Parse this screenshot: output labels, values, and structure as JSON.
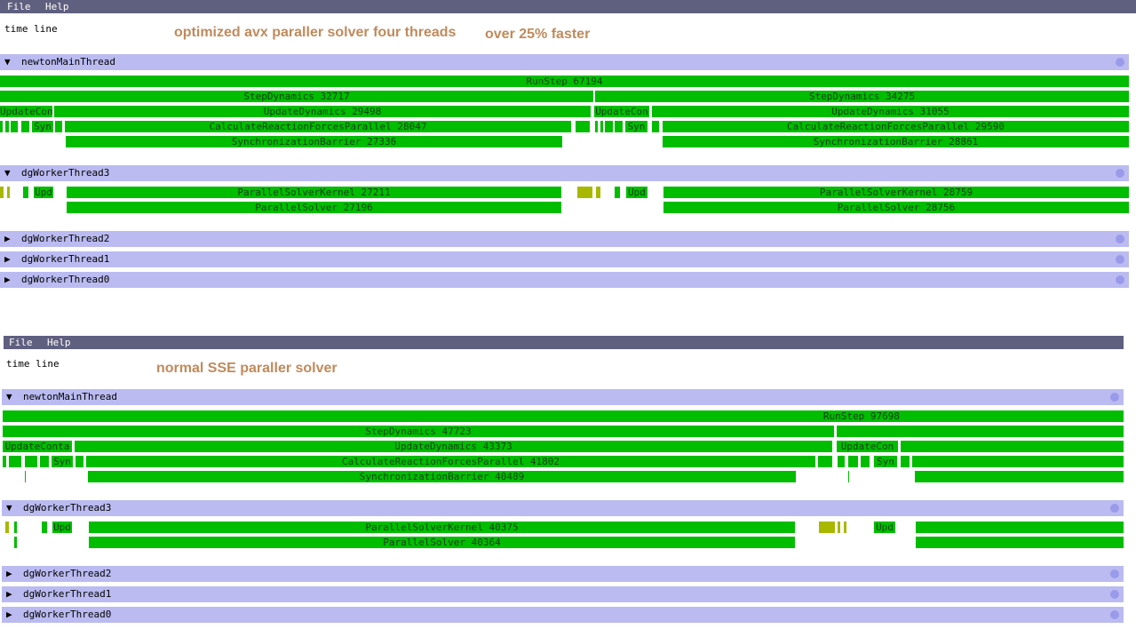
{
  "panels": [
    {
      "menu": [
        "File",
        "Help"
      ],
      "timeline_label": "time line",
      "annotations": [
        "optimized avx paraller solver four threads",
        "over 25% faster"
      ],
      "threads": [
        {
          "toggle": "▼",
          "name": "newtonMainThread",
          "rows": [
            [
              {
                "label": "RunStep 67194"
              }
            ],
            [
              {
                "label": "StepDynamics 32717"
              },
              {
                "label": "StepDynamics 34275"
              }
            ],
            [
              {
                "label": "UpdateCon"
              },
              {
                "label": "UpdateDynamics 29498"
              },
              {
                "label": "UpdateCon"
              },
              {
                "label": "UpdateDynamics 31055"
              }
            ],
            [
              {
                "label": ""
              },
              {
                "label": ""
              },
              {
                "label": ""
              },
              {
                "label": ""
              },
              {
                "label": "Syn"
              },
              {
                "label": ""
              },
              {
                "label": "CalculateReactionForcesParallel 28047"
              },
              {
                "label": ""
              },
              {
                "label": ""
              },
              {
                "label": ""
              },
              {
                "label": ""
              },
              {
                "label": ""
              },
              {
                "label": "Syn"
              },
              {
                "label": ""
              },
              {
                "label": "CalculateReactionForcesParallel 29590"
              }
            ],
            [
              {
                "label": "SynchronizationBarrier 27336"
              },
              {
                "label": "SynchronizationBarrier 28861"
              }
            ]
          ]
        },
        {
          "toggle": "▼",
          "name": "dgWorkerThread3",
          "rows": [
            [
              {
                "label": ""
              },
              {
                "label": ""
              },
              {
                "label": ""
              },
              {
                "label": "Upd"
              },
              {
                "label": "ParallelSolverKernel 27211"
              },
              {
                "label": ""
              },
              {
                "label": ""
              },
              {
                "label": ""
              },
              {
                "label": "Upd"
              },
              {
                "label": "ParallelSolverKernel 28759"
              }
            ],
            [
              {
                "label": "ParallelSolver 27196"
              },
              {
                "label": "ParallelSolver 28756"
              }
            ]
          ]
        },
        {
          "toggle": "▶",
          "name": "dgWorkerThread2",
          "rows": []
        },
        {
          "toggle": "▶",
          "name": "dgWorkerThread1",
          "rows": []
        },
        {
          "toggle": "▶",
          "name": "dgWorkerThread0",
          "rows": []
        }
      ]
    },
    {
      "menu": [
        "File",
        "Help"
      ],
      "timeline_label": "time line",
      "annotations": [
        "normal SSE paraller solver"
      ],
      "threads": [
        {
          "toggle": "▼",
          "name": "newtonMainThread",
          "rows": [
            [
              {
                "label": "RunStep 97698"
              }
            ],
            [
              {
                "label": "StepDynamics 47723"
              },
              {
                "label": ""
              }
            ],
            [
              {
                "label": "UpdateConta"
              },
              {
                "label": "UpdateDynamics 43373"
              },
              {
                "label": "UpdateCon"
              },
              {
                "label": ""
              }
            ],
            [
              {
                "label": ""
              },
              {
                "label": ""
              },
              {
                "label": ""
              },
              {
                "label": ""
              },
              {
                "label": "Syn"
              },
              {
                "label": ""
              },
              {
                "label": "CalculateReactionForcesParallel 41802"
              },
              {
                "label": ""
              },
              {
                "label": ""
              },
              {
                "label": ""
              },
              {
                "label": ""
              },
              {
                "label": "Syn"
              },
              {
                "label": ""
              },
              {
                "label": ""
              }
            ],
            [
              {
                "label": ""
              },
              {
                "label": "SynchronizationBarrier 40489"
              },
              {
                "label": ""
              },
              {
                "label": ""
              }
            ]
          ]
        },
        {
          "toggle": "▼",
          "name": "dgWorkerThread3",
          "rows": [
            [
              {
                "label": ""
              },
              {
                "label": ""
              },
              {
                "label": ""
              },
              {
                "label": "Upd"
              },
              {
                "label": "ParallelSolverKernel 40375"
              },
              {
                "label": ""
              },
              {
                "label": ""
              },
              {
                "label": ""
              },
              {
                "label": "Upd"
              },
              {
                "label": ""
              }
            ],
            [
              {
                "label": ""
              },
              {
                "label": "ParallelSolver 40364"
              },
              {
                "label": ""
              }
            ]
          ]
        },
        {
          "toggle": "▶",
          "name": "dgWorkerThread2",
          "rows": []
        },
        {
          "toggle": "▶",
          "name": "dgWorkerThread1",
          "rows": []
        },
        {
          "toggle": "▶",
          "name": "dgWorkerThread0",
          "rows": []
        }
      ]
    }
  ]
}
